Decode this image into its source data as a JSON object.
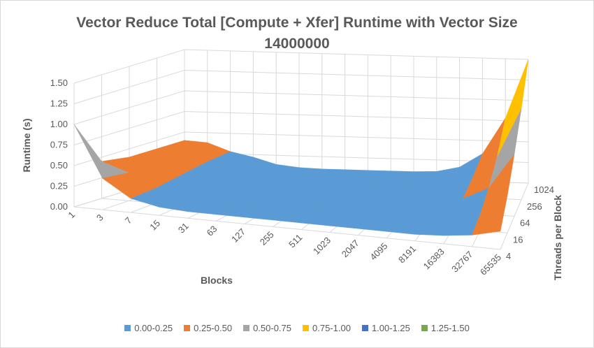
{
  "chart_data": {
    "type": "surface",
    "title": "Vector Reduce Total [Compute + Xfer] Runtime with Vector Size\n14000000",
    "xlabel": "Blocks",
    "ylabel": "Runtime (s)",
    "zlabel": "Threads per Block",
    "x_categories": [
      "1",
      "3",
      "7",
      "15",
      "31",
      "63",
      "127",
      "255",
      "511",
      "1023",
      "2047",
      "4095",
      "8191",
      "16383",
      "32767",
      "65535"
    ],
    "z_categories": [
      "4",
      "16",
      "64",
      "256",
      "1024"
    ],
    "y_ticks": [
      "0.00",
      "0.25",
      "0.50",
      "0.75",
      "1.00",
      "1.25",
      "1.50"
    ],
    "ylim": [
      0,
      1.5
    ],
    "values": [
      [
        1.0,
        0.38,
        0.17,
        0.1,
        0.08,
        0.08,
        0.08,
        0.08,
        0.08,
        0.08,
        0.08,
        0.08,
        0.08,
        0.1,
        0.14,
        0.22
      ],
      [
        0.45,
        0.34,
        0.18,
        0.1,
        0.08,
        0.08,
        0.08,
        0.08,
        0.08,
        0.08,
        0.08,
        0.08,
        0.09,
        0.12,
        0.2,
        0.45
      ],
      [
        0.4,
        0.36,
        0.22,
        0.13,
        0.09,
        0.08,
        0.08,
        0.08,
        0.08,
        0.08,
        0.08,
        0.09,
        0.1,
        0.17,
        0.32,
        0.75
      ],
      [
        0.4,
        0.38,
        0.26,
        0.18,
        0.12,
        0.1,
        0.09,
        0.09,
        0.09,
        0.09,
        0.09,
        0.1,
        0.13,
        0.24,
        0.5,
        1.1
      ],
      [
        0.4,
        0.38,
        0.28,
        0.22,
        0.14,
        0.11,
        0.1,
        0.1,
        0.1,
        0.1,
        0.1,
        0.11,
        0.17,
        0.34,
        0.78,
        1.5
      ]
    ],
    "legend": [
      {
        "label": "0.00-0.25",
        "color": "#5b9bd5"
      },
      {
        "label": "0.25-0.50",
        "color": "#ed7d31"
      },
      {
        "label": "0.50-0.75",
        "color": "#a5a5a5"
      },
      {
        "label": "0.75-1.00",
        "color": "#ffc000"
      },
      {
        "label": "1.00-1.25",
        "color": "#4472c4"
      },
      {
        "label": "1.25-1.50",
        "color": "#70ad47"
      }
    ],
    "legend_position": "bottom",
    "grid": true
  }
}
